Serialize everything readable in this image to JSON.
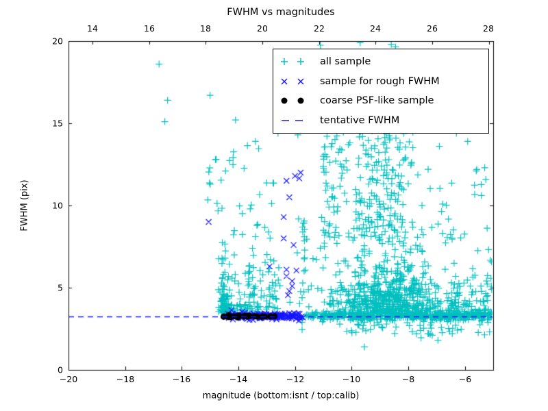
{
  "chart_data": {
    "type": "scatter",
    "title": "FWHM vs magnitudes",
    "xlabel": "magnitude (bottom:isnt / top:calib)",
    "ylabel": "FWHM (pix)",
    "xlim": [
      -20,
      -5
    ],
    "ylim": [
      0,
      20
    ],
    "x_top_lim": [
      13.15,
      28.15
    ],
    "x_ticks_bottom": [
      -20,
      -18,
      -16,
      -14,
      -12,
      -10,
      -8,
      -6
    ],
    "x_tick_labels_bottom": [
      "−20",
      "−18",
      "−16",
      "−14",
      "−12",
      "−10",
      "−8",
      "−6"
    ],
    "x_ticks_top": [
      14,
      16,
      18,
      20,
      22,
      24,
      26,
      28
    ],
    "x_tick_labels_top": [
      "14",
      "16",
      "18",
      "20",
      "22",
      "24",
      "26",
      "28"
    ],
    "y_ticks": [
      0,
      5,
      10,
      15,
      20
    ],
    "y_tick_labels": [
      "0",
      "5",
      "10",
      "15",
      "20"
    ],
    "grid": false,
    "tentative_fwhm_value": 3.25,
    "legend": {
      "position": "upper right",
      "entries": [
        {
          "label": "all sample",
          "marker": "plus",
          "color": "#00bfbf"
        },
        {
          "label": "sample for rough FWHM",
          "marker": "cross",
          "color": "#1414ff"
        },
        {
          "label": "coarse PSF-like sample",
          "marker": "dot",
          "color": "#000000"
        },
        {
          "label": "tentative FWHM",
          "marker": "dashes",
          "color": "#1414ff"
        }
      ]
    },
    "series": [
      {
        "name": "all sample",
        "marker": "plus",
        "color": "#00bfbf",
        "marker_size": 5,
        "points": [
          [
            -16.8,
            18.6
          ],
          [
            -16.5,
            16.4
          ],
          [
            -16.6,
            15.1
          ],
          [
            -15.0,
            16.7
          ],
          [
            -14.1,
            15.2
          ],
          [
            -11.1,
            19.75
          ],
          [
            -9.7,
            19.9
          ],
          [
            -8.6,
            19.8
          ],
          [
            -8.45,
            19.65
          ],
          [
            -9.5,
            17.4
          ],
          [
            -10.3,
            16.2
          ],
          [
            -9.0,
            16.0
          ],
          [
            -10.0,
            15.5
          ],
          [
            -8.2,
            15.2
          ],
          [
            -9.2,
            14.9
          ],
          [
            -6.3,
            14.4
          ],
          [
            -5.9,
            13.9
          ],
          [
            -6.9,
            13.6
          ],
          [
            -5.6,
            12.1
          ],
          [
            -7.3,
            12.2
          ],
          [
            -5.3,
            12.3
          ],
          [
            -11.9,
            14.3
          ],
          [
            -12.6,
            14.4
          ],
          [
            -13.4,
            13.9
          ],
          [
            -9.55,
            1.4
          ],
          [
            -7.55,
            1.95
          ],
          [
            -6.95,
            1.8
          ],
          [
            -11.75,
            2.9
          ],
          [
            -11.75,
            2.45
          ]
        ],
        "clusters": [
          {
            "n": 28,
            "seed": 101,
            "x": {
              "t": "u",
              "a": -15.15,
              "b": -12.65
            },
            "y": {
              "t": "u",
              "a": 9.5,
              "b": 13.8
            }
          },
          {
            "n": 85,
            "seed": 102,
            "x": {
              "t": "g",
              "mu": -14.52,
              "s": 0.09,
              "lo": -14.78,
              "hi": -14.25
            },
            "y": {
              "t": "e",
              "base": 3.45,
              "mean": 1.3,
              "max": 8.3
            }
          },
          {
            "n": 115,
            "seed": 103,
            "x": {
              "t": "u",
              "a": -14.4,
              "b": -12.5
            },
            "y": {
              "t": "e",
              "base": 3.55,
              "mean": 1.6,
              "max": 9.2
            }
          },
          {
            "n": 14,
            "seed": 104,
            "x": {
              "t": "u",
              "a": -12.45,
              "b": -11.05
            },
            "y": {
              "t": "u",
              "a": 3.8,
              "b": 9.5
            }
          },
          {
            "n": 16,
            "seed": 105,
            "x": {
              "t": "g",
              "mu": -11.7,
              "s": 0.05
            },
            "y": {
              "t": "u",
              "a": 3.6,
              "b": 9.0
            }
          },
          {
            "n": 620,
            "seed": 106,
            "x": {
              "t": "g",
              "mu": -8.7,
              "s": 1.05,
              "lo": -11.3,
              "hi": -6.4
            },
            "y": {
              "t": "e",
              "base": 3.35,
              "mean": 1.5,
              "max": 9.5
            }
          },
          {
            "n": 110,
            "seed": 107,
            "x": {
              "t": "g",
              "mu": -8.95,
              "s": 0.5,
              "lo": -10.2,
              "hi": -7.6
            },
            "y": {
              "t": "u",
              "a": 8.0,
              "b": 14.7
            }
          },
          {
            "n": 120,
            "seed": 108,
            "x": {
              "t": "p",
              "a": -11.0,
              "b": -7.5,
              "p": 1.7
            },
            "y": {
              "t": "u",
              "a": 7.5,
              "b": 15.0
            }
          },
          {
            "n": 22,
            "seed": 109,
            "x": {
              "t": "u",
              "a": -7.4,
              "b": -5.1
            },
            "y": {
              "t": "u",
              "a": 7.5,
              "b": 12.5
            }
          },
          {
            "n": 420,
            "seed": 110,
            "x": {
              "t": "u",
              "a": -11.65,
              "b": -5.05
            },
            "y": {
              "t": "g",
              "mu": 3.28,
              "s": 0.13
            }
          },
          {
            "n": 110,
            "seed": 111,
            "x": {
              "t": "u",
              "a": -6.6,
              "b": -5.05
            },
            "y": {
              "t": "e",
              "base": 3.3,
              "mean": 1.1,
              "max": 8.0
            }
          },
          {
            "n": 55,
            "seed": 112,
            "x": {
              "t": "u",
              "a": -10.6,
              "b": -5.1
            },
            "y": {
              "t": "u",
              "a": 2.1,
              "b": 3.05
            }
          }
        ]
      },
      {
        "name": "sample for rough FWHM",
        "marker": "cross",
        "color": "#1414ff",
        "marker_size": 4,
        "points": [
          [
            -15.05,
            9.0
          ],
          [
            -12.0,
            11.8
          ],
          [
            -11.85,
            11.65
          ],
          [
            -11.8,
            12.0
          ],
          [
            -12.3,
            11.5
          ],
          [
            -12.2,
            10.5
          ],
          [
            -12.4,
            9.3
          ],
          [
            -12.4,
            8.0
          ],
          [
            -12.05,
            7.6
          ],
          [
            -12.9,
            6.3
          ],
          [
            -12.3,
            6.1
          ],
          [
            -11.95,
            6.05
          ],
          [
            -12.3,
            5.7
          ],
          [
            -12.1,
            5.4
          ],
          [
            -12.1,
            5.1
          ],
          [
            -12.2,
            4.8
          ],
          [
            -12.25,
            4.55
          ]
        ],
        "clusters": [
          {
            "n": 160,
            "seed": 201,
            "x": {
              "t": "u",
              "a": -14.45,
              "b": -11.68
            },
            "y": {
              "t": "g",
              "mu": 3.27,
              "s": 0.09
            }
          }
        ]
      },
      {
        "name": "coarse PSF-like sample",
        "marker": "dot",
        "color": "#000000",
        "marker_size": 4.5,
        "points": [],
        "clusters": [
          {
            "n": 26,
            "seed": 301,
            "x": {
              "t": "u",
              "a": -14.55,
              "b": -12.72
            },
            "y": {
              "t": "g",
              "mu": 3.25,
              "s": 0.03
            }
          }
        ]
      }
    ]
  }
}
